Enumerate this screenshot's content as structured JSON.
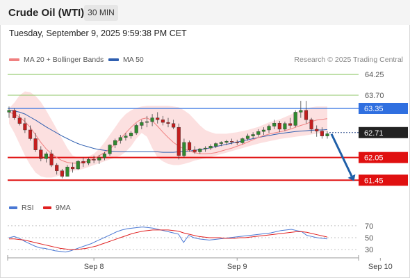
{
  "header": {
    "title": "Crude Oil (WTI)",
    "timeframe": "30 MIN"
  },
  "timestamp": "Tuesday, September 9, 2025 9:59:38 PM CET",
  "legend": {
    "ma20": "MA 20 + Bollinger Bands",
    "ma50": "MA 50",
    "ma20_color": "#f08080",
    "ma50_color": "#2f5fb0"
  },
  "copyright": "Research © 2025 Trading Central",
  "rsi_legend": {
    "rsi": "RSI",
    "ma9": "9MA",
    "rsi_color": "#4a78d4",
    "ma9_color": "#e02020"
  },
  "chart_data": [
    {
      "type": "candlestick",
      "title": "Crude Oil (WTI)",
      "interval": "30 MIN",
      "x_ticks": [
        "Sep 8",
        "Sep 9",
        "Sep 10"
      ],
      "x_tick_index": [
        16,
        43,
        70
      ],
      "y_ticks": [
        64.25,
        63.7,
        62.05,
        61.45
      ],
      "ylim": [
        61.4,
        64.38
      ],
      "current_price": 62.71,
      "levels": [
        {
          "value": 64.25,
          "label": "64.25",
          "kind": "resistance-light",
          "color": "#8cc665"
        },
        {
          "value": 63.7,
          "label": "63.70",
          "kind": "resistance-light",
          "color": "#8cc665"
        },
        {
          "value": 63.35,
          "label": "63.35",
          "kind": "pivot",
          "color": "#2f6fe0"
        },
        {
          "value": 62.05,
          "label": "62.05",
          "kind": "support",
          "color": "#e01010"
        },
        {
          "value": 61.45,
          "label": "61.45",
          "kind": "support",
          "color": "#e01010"
        }
      ],
      "price_tag": {
        "value": 62.71,
        "label": "62.71",
        "color": "#222222"
      },
      "forecast_arrow": {
        "from": 62.71,
        "to": 61.45,
        "color": "#1f5fa8"
      },
      "grid": false,
      "series": [
        {
          "name": "MA 20",
          "color": "#f08080",
          "values": [
            63.25,
            63.2,
            63.12,
            63.0,
            62.85,
            62.65,
            62.45,
            62.28,
            62.15,
            62.05,
            61.97,
            61.92,
            61.9,
            61.9,
            61.92,
            61.96,
            62.02,
            62.1,
            62.18,
            62.28,
            62.4,
            62.55,
            62.7,
            62.85,
            62.98,
            63.07,
            63.1,
            63.02,
            62.88,
            62.72,
            62.58,
            62.45,
            62.35,
            62.28,
            62.22,
            62.18,
            62.15,
            62.15,
            62.16,
            62.18,
            62.22,
            62.26,
            62.3,
            62.35,
            62.4,
            62.46,
            62.52,
            62.58,
            62.63,
            62.67,
            62.7,
            62.73,
            62.76,
            62.8,
            62.85,
            62.9,
            62.94,
            63.0,
            63.04,
            63.06,
            63.08
          ]
        },
        {
          "name": "MA 50",
          "color": "#2f5fb0",
          "values": [
            63.3,
            63.28,
            63.25,
            63.2,
            63.12,
            63.04,
            62.95,
            62.86,
            62.78,
            62.7,
            62.62,
            62.55,
            62.48,
            62.42,
            62.37,
            62.33,
            62.29,
            62.26,
            62.24,
            62.22,
            62.21,
            62.2,
            62.2,
            62.2,
            62.2,
            62.2,
            62.2,
            62.2,
            62.2,
            62.19,
            62.19,
            62.19,
            62.2,
            62.21,
            62.22,
            62.24,
            62.26,
            62.28,
            62.31,
            62.34,
            62.37,
            62.4,
            62.43,
            62.46,
            62.49,
            62.52,
            62.55,
            62.58,
            62.61,
            62.63,
            62.66,
            62.68,
            62.7,
            62.72,
            62.74,
            62.75,
            62.76,
            62.77,
            62.78,
            62.78,
            62.79
          ]
        },
        {
          "name": "Bollinger Upper",
          "values": [
            63.35,
            63.5,
            63.7,
            63.8,
            63.78,
            63.68,
            63.52,
            63.3,
            63.05,
            62.8,
            62.55,
            62.3,
            62.1,
            62.05,
            62.05,
            62.08,
            62.15,
            62.28,
            62.45,
            62.65,
            62.85,
            63.05,
            63.2,
            63.3,
            63.36,
            63.4,
            63.42,
            63.42,
            63.42,
            63.42,
            63.42,
            63.4,
            63.38,
            63.3,
            63.2,
            63.05,
            62.9,
            62.78,
            62.72,
            62.68,
            62.68,
            62.68,
            62.7,
            62.72,
            62.75,
            62.78,
            62.82,
            62.86,
            62.92,
            62.98,
            63.02,
            63.06,
            63.12,
            63.18,
            63.25,
            63.3,
            63.35,
            63.38,
            63.4,
            63.4,
            63.4
          ]
        },
        {
          "name": "Bollinger Lower",
          "values": [
            62.95,
            62.7,
            62.4,
            62.1,
            61.85,
            61.65,
            61.55,
            61.52,
            61.52,
            61.55,
            61.6,
            61.65,
            61.7,
            61.72,
            61.75,
            61.8,
            61.85,
            61.9,
            61.95,
            62.0,
            62.05,
            62.1,
            62.2,
            62.35,
            62.55,
            62.7,
            62.6,
            62.3,
            62.05,
            61.95,
            61.88,
            61.85,
            61.85,
            61.88,
            61.92,
            61.97,
            62.0,
            62.03,
            62.06,
            62.1,
            62.14,
            62.18,
            62.22,
            62.26,
            62.3,
            62.34,
            62.38,
            62.42,
            62.45,
            62.48,
            62.51,
            62.54,
            62.56,
            62.58,
            62.6,
            62.62,
            62.64,
            62.66,
            62.68,
            62.7,
            62.72
          ]
        },
        {
          "name": "Price",
          "candles": [
            [
              63.25,
              63.4,
              63.1,
              63.3
            ],
            [
              63.3,
              63.35,
              63.05,
              63.1
            ],
            [
              63.1,
              63.2,
              62.9,
              62.95
            ],
            [
              62.95,
              63.1,
              62.7,
              62.78
            ],
            [
              62.78,
              62.9,
              62.5,
              62.55
            ],
            [
              62.55,
              62.7,
              62.2,
              62.25
            ],
            [
              62.25,
              62.35,
              61.95,
              62.02
            ],
            [
              62.02,
              62.2,
              61.92,
              62.15
            ],
            [
              62.15,
              62.25,
              61.8,
              61.85
            ],
            [
              61.85,
              61.9,
              61.6,
              61.7
            ],
            [
              61.7,
              61.75,
              61.5,
              61.55
            ],
            [
              61.55,
              61.85,
              61.55,
              61.8
            ],
            [
              61.8,
              61.92,
              61.65,
              61.75
            ],
            [
              61.75,
              61.98,
              61.72,
              61.95
            ],
            [
              61.95,
              62.05,
              61.8,
              61.9
            ],
            [
              61.9,
              62.05,
              61.85,
              62.0
            ],
            [
              62.0,
              62.1,
              61.9,
              61.98
            ],
            [
              61.98,
              62.12,
              61.88,
              62.05
            ],
            [
              62.05,
              62.2,
              61.98,
              62.15
            ],
            [
              62.15,
              62.4,
              62.1,
              62.38
            ],
            [
              62.38,
              62.55,
              62.3,
              62.5
            ],
            [
              62.5,
              62.65,
              62.42,
              62.58
            ],
            [
              62.58,
              62.7,
              62.5,
              62.62
            ],
            [
              62.62,
              62.75,
              62.55,
              62.7
            ],
            [
              62.7,
              62.95,
              62.65,
              62.9
            ],
            [
              62.9,
              63.05,
              62.8,
              62.98
            ],
            [
              62.98,
              63.15,
              62.85,
              63.0
            ],
            [
              63.0,
              63.2,
              62.88,
              63.1
            ],
            [
              63.1,
              63.25,
              62.95,
              63.05
            ],
            [
              63.05,
              63.15,
              62.9,
              62.98
            ],
            [
              62.98,
              63.1,
              62.85,
              62.95
            ],
            [
              62.95,
              63.05,
              62.8,
              62.85
            ],
            [
              62.85,
              62.95,
              62.0,
              62.1
            ],
            [
              62.1,
              62.55,
              62.05,
              62.45
            ],
            [
              62.45,
              62.5,
              62.2,
              62.25
            ],
            [
              62.25,
              62.35,
              62.15,
              62.2
            ],
            [
              62.2,
              62.3,
              62.15,
              62.28
            ],
            [
              62.28,
              62.35,
              62.2,
              62.3
            ],
            [
              62.3,
              62.4,
              62.25,
              62.35
            ],
            [
              62.35,
              62.45,
              62.3,
              62.42
            ],
            [
              62.42,
              62.48,
              62.35,
              62.45
            ],
            [
              62.45,
              62.52,
              62.38,
              62.48
            ],
            [
              62.48,
              62.55,
              62.4,
              62.46
            ],
            [
              62.46,
              62.52,
              62.38,
              62.44
            ],
            [
              62.44,
              62.58,
              62.4,
              62.55
            ],
            [
              62.55,
              62.68,
              62.5,
              62.62
            ],
            [
              62.62,
              62.72,
              62.55,
              62.66
            ],
            [
              62.66,
              62.8,
              62.6,
              62.74
            ],
            [
              62.74,
              62.85,
              62.65,
              62.78
            ],
            [
              62.78,
              62.92,
              62.7,
              62.88
            ],
            [
              62.88,
              63.05,
              62.8,
              62.96
            ],
            [
              62.96,
              63.02,
              62.72,
              62.8
            ],
            [
              62.8,
              63.0,
              62.75,
              62.95
            ],
            [
              62.95,
              63.1,
              62.82,
              62.9
            ],
            [
              62.9,
              63.3,
              62.85,
              63.25
            ],
            [
              63.25,
              63.55,
              63.1,
              63.3
            ],
            [
              63.3,
              63.55,
              62.95,
              63.05
            ],
            [
              63.05,
              63.1,
              62.7,
              62.8
            ],
            [
              62.8,
              62.9,
              62.6,
              62.75
            ],
            [
              62.75,
              62.85,
              62.55,
              62.62
            ],
            [
              62.62,
              62.75,
              62.55,
              62.68
            ]
          ]
        }
      ]
    },
    {
      "type": "line",
      "title": "RSI",
      "y_ticks": [
        70,
        50,
        30
      ],
      "ylim": [
        22,
        78
      ],
      "series": [
        {
          "name": "RSI",
          "color": "#4a78d4",
          "values": [
            50,
            52,
            49,
            44,
            40,
            36,
            33,
            32,
            30,
            28,
            27,
            26,
            28,
            31,
            34,
            37,
            40,
            44,
            48,
            52,
            56,
            60,
            63,
            65,
            66,
            67,
            68,
            67,
            66,
            64,
            62,
            60,
            58,
            56,
            42,
            54,
            50,
            48,
            47,
            46,
            47,
            48,
            49,
            50,
            51,
            52,
            53,
            54,
            55,
            56,
            57,
            58,
            60,
            62,
            63,
            64,
            62,
            60,
            54,
            52,
            50,
            49,
            48
          ]
        },
        {
          "name": "9MA",
          "color": "#e02020",
          "values": [
            48,
            48,
            47,
            46,
            44,
            42,
            40,
            38,
            36,
            34,
            32,
            31,
            30,
            30,
            31,
            32,
            34,
            36,
            39,
            42,
            45,
            48,
            51,
            54,
            57,
            59,
            61,
            62,
            63,
            63,
            63,
            63,
            62,
            61,
            58,
            56,
            54,
            52,
            51,
            50,
            50,
            50,
            49,
            49,
            49,
            50,
            50,
            51,
            52,
            53,
            54,
            55,
            56,
            57,
            58,
            59,
            60,
            60,
            59,
            57,
            55,
            53,
            51
          ]
        }
      ]
    }
  ]
}
